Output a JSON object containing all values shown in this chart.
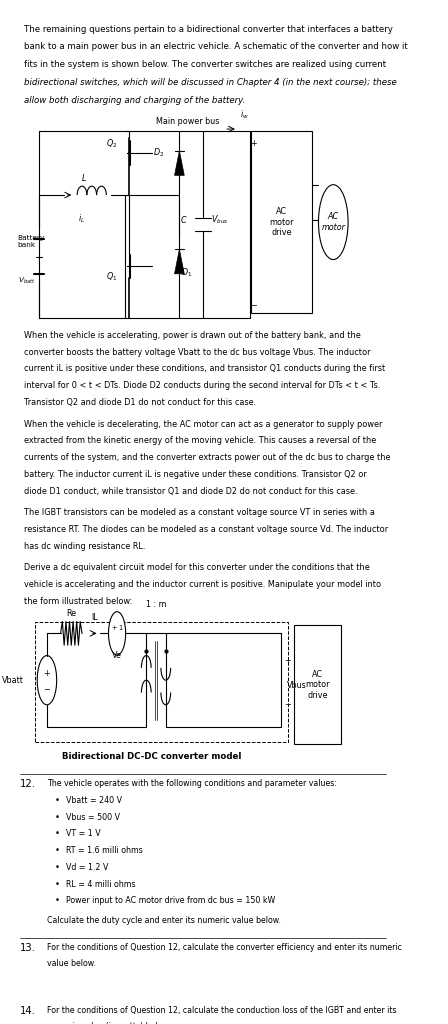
{
  "bg_color": "#ffffff",
  "text_color": "#000000",
  "page_width": 4.48,
  "page_height": 10.24,
  "dpi": 100,
  "intro_text": "The remaining questions pertain to a bidirectional converter that interfaces a battery\nbank to a main power bus in an electric vehicle. A schematic of the converter and how it\nfits in the system is shown below. The converter switches are realized using current\nbidirectional switches, which will be discussed in Chapter 4 (in the next course); these\nallow both discharging and charging of the battery.",
  "diagram_label": "Bidirectional DC-DC converter model",
  "para1": "When the vehicle is accelerating, power is drawn out of the battery bank, and the\nconverter boosts the battery voltage Vbatt to the dc bus voltage Vbus. The inductor\ncurrent iL is positive under these conditions, and transistor Q1 conducts during the first\ninterval for 0 < t < DTs. Diode D2 conducts during the second interval for DTs < t < Ts.\nTransistor Q2 and diode D1 do not conduct for this case.",
  "para2": "When the vehicle is decelerating, the AC motor can act as a generator to supply power\nextracted from the kinetic energy of the moving vehicle. This causes a reversal of the\ncurrents of the system, and the converter extracts power out of the dc bus to charge the\nbattery. The inductor current iL is negative under these conditions. Transistor Q2 or\ndiode D1 conduct, while transistor Q1 and diode D2 do not conduct for this case.",
  "para3": "The IGBT transistors can be modeled as a constant voltage source VT in series with a\nresistance RT. The diodes can be modeled as a constant voltage source Vd. The inductor\nhas dc winding resistance RL.",
  "para4": "Derive a dc equivalent circuit model for this converter under the conditions that the\nvehicle is accelerating and the inductor current is positive. Manipulate your model into\nthe form illustrated below:",
  "q12_header": "The vehicle operates with the following conditions and parameter values:",
  "q12_bullets": [
    "Vbatt = 240 V",
    "Vbus = 500 V",
    "VT = 1 V",
    "RT = 1.6 milli ohms",
    "Vd = 1.2 V",
    "RL = 4 milli ohms",
    "Power input to AC motor drive from dc bus = 150 kW"
  ],
  "q12_footer": "Calculate the duty cycle and enter its numeric value below.",
  "q13_text": "For the conditions of Question 12, calculate the converter efficiency and enter its numeric\nvalue below.",
  "q14_text": "For the conditions of Question 12, calculate the conduction loss of the IGBT and enter its\nnumeric value (in watts) below."
}
